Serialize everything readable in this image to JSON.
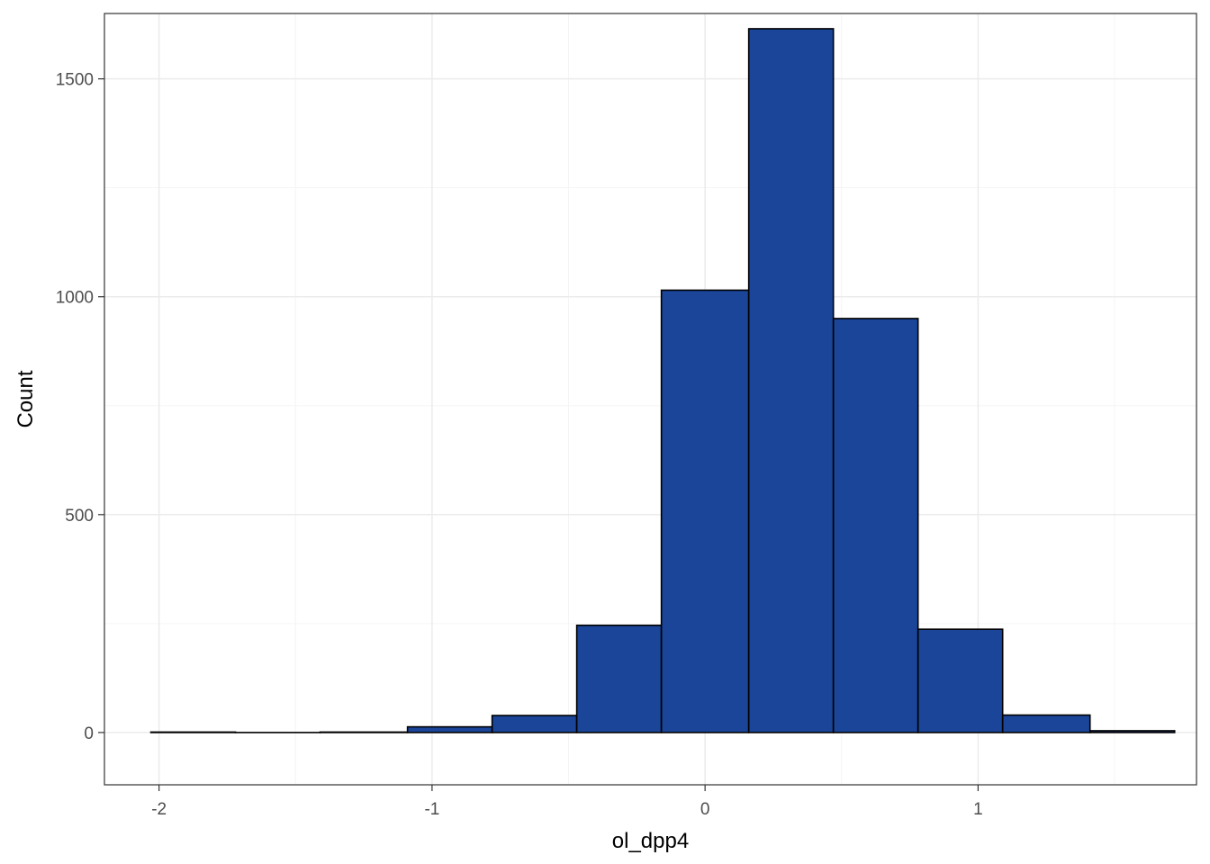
{
  "chart_data": {
    "type": "bar",
    "subtype": "histogram",
    "xlabel": "ol_dpp4",
    "ylabel": "Count",
    "xlim": [
      -2.2,
      1.8
    ],
    "ylim": [
      -120,
      1650
    ],
    "xticks": [
      -2,
      -1,
      0,
      1
    ],
    "xtick_labels": [
      "-2",
      "-1",
      "0",
      "1"
    ],
    "yticks": [
      0,
      500,
      1000,
      1500
    ],
    "ytick_labels": [
      "0",
      "500",
      "1000",
      "1500"
    ],
    "grid": true,
    "bin_width": 0.3125,
    "bins": [
      {
        "x0": -2.03,
        "x1": -1.72,
        "count": 1
      },
      {
        "x0": -1.72,
        "x1": -1.41,
        "count": 0
      },
      {
        "x0": -1.41,
        "x1": -1.09,
        "count": 1
      },
      {
        "x0": -1.09,
        "x1": -0.78,
        "count": 13
      },
      {
        "x0": -0.78,
        "x1": -0.47,
        "count": 39
      },
      {
        "x0": -0.47,
        "x1": -0.16,
        "count": 246
      },
      {
        "x0": -0.16,
        "x1": 0.16,
        "count": 1015
      },
      {
        "x0": 0.16,
        "x1": 0.47,
        "count": 1615
      },
      {
        "x0": 0.47,
        "x1": 0.78,
        "count": 950
      },
      {
        "x0": 0.78,
        "x1": 1.09,
        "count": 237
      },
      {
        "x0": 1.09,
        "x1": 1.41,
        "count": 40
      },
      {
        "x0": 1.41,
        "x1": 1.72,
        "count": 4
      }
    ],
    "colors": {
      "bar_fill": "#1a4599",
      "bar_stroke": "#000000",
      "grid_major": "#ebebeb",
      "grid_minor": "#f5f5f5",
      "panel_border": "#333333"
    }
  }
}
